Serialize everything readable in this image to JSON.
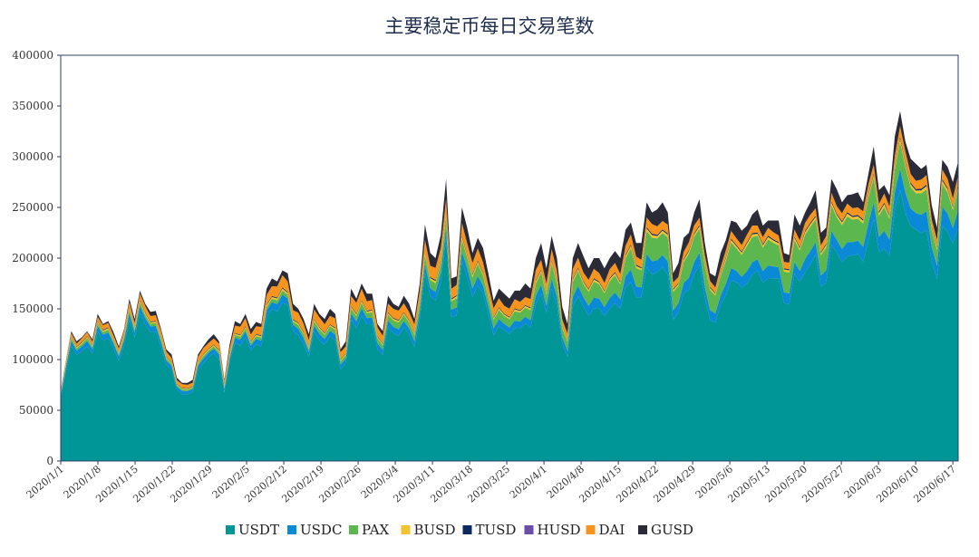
{
  "chart_data": {
    "type": "area",
    "stacked": true,
    "title": "主要稳定币每日交易笔数",
    "xlabel": "",
    "ylabel": "",
    "ylim": [
      0,
      400000
    ],
    "yticks": [
      0,
      50000,
      100000,
      150000,
      200000,
      250000,
      300000,
      350000,
      400000
    ],
    "x_start": "2020/1/1",
    "x_end": "2020/6/18",
    "xtick_labels": [
      "2020/1/1",
      "2020/1/8",
      "2020/1/15",
      "2020/1/22",
      "2020/1/29",
      "2020/2/5",
      "2020/2/12",
      "2020/2/19",
      "2020/2/26",
      "2020/3/4",
      "2020/3/11",
      "2020/3/18",
      "2020/3/25",
      "2020/4/1",
      "2020/4/8",
      "2020/4/15",
      "2020/4/22",
      "2020/4/29",
      "2020/5/6",
      "2020/5/13",
      "2020/5/20",
      "2020/5/27",
      "2020/6/3",
      "2020/6/10",
      "2020/6/17"
    ],
    "grid": false,
    "legend_position": "bottom",
    "totals_estimated": [
      70000,
      100000,
      128000,
      118000,
      122000,
      128000,
      120000,
      145000,
      135000,
      138000,
      127000,
      113000,
      130000,
      160000,
      140000,
      168000,
      155000,
      147000,
      148000,
      130000,
      110000,
      105000,
      82000,
      77000,
      77000,
      80000,
      105000,
      113000,
      120000,
      125000,
      118000,
      80000,
      115000,
      138000,
      135000,
      145000,
      130000,
      137000,
      135000,
      170000,
      180000,
      177000,
      188000,
      185000,
      155000,
      150000,
      140000,
      125000,
      155000,
      145000,
      140000,
      150000,
      145000,
      110000,
      118000,
      170000,
      160000,
      175000,
      165000,
      165000,
      135000,
      128000,
      163000,
      155000,
      152000,
      163000,
      155000,
      140000,
      175000,
      233000,
      205000,
      200000,
      223000,
      278000,
      180000,
      182000,
      250000,
      230000,
      205000,
      220000,
      210000,
      185000,
      158000,
      170000,
      165000,
      160000,
      168000,
      168000,
      175000,
      170000,
      200000,
      215000,
      190000,
      222000,
      200000,
      152000,
      135000,
      200000,
      215000,
      202000,
      190000,
      200000,
      200000,
      190000,
      200000,
      207000,
      200000,
      228000,
      235000,
      215000,
      215000,
      255000,
      245000,
      248000,
      255000,
      245000,
      185000,
      195000,
      220000,
      225000,
      245000,
      258000,
      215000,
      185000,
      182000,
      205000,
      218000,
      237000,
      235000,
      227000,
      232000,
      243000,
      248000,
      232000,
      237000,
      237000,
      237000,
      205000,
      203000,
      243000,
      232000,
      245000,
      255000,
      267000,
      225000,
      230000,
      278000,
      268000,
      255000,
      262000,
      263000,
      265000,
      255000,
      283000,
      310000,
      267000,
      272000,
      262000,
      320000,
      345000,
      315000,
      298000,
      293000,
      288000,
      292000,
      252000,
      230000,
      297000,
      290000,
      275000,
      295000
    ],
    "series": [
      {
        "name": "USDT",
        "color": "#009596",
        "share": [
          0.89,
          0.88,
          0.87,
          0.86,
          0.85,
          0.84,
          0.83,
          0.82,
          0.81,
          0.8,
          0.79,
          0.78,
          0.77,
          0.76,
          0.75,
          0.75,
          0.75,
          0.75,
          0.75,
          0.76,
          0.76,
          0.77,
          0.77,
          0.78,
          0.78
        ]
      },
      {
        "name": "USDC",
        "color": "#0a8ad6",
        "share": [
          0.04,
          0.04,
          0.04,
          0.04,
          0.04,
          0.04,
          0.04,
          0.04,
          0.04,
          0.04,
          0.04,
          0.04,
          0.04,
          0.04,
          0.05,
          0.05,
          0.05,
          0.05,
          0.05,
          0.05,
          0.05,
          0.05,
          0.06,
          0.06,
          0.06
        ]
      },
      {
        "name": "PAX",
        "color": "#5cb84e",
        "share": [
          0.02,
          0.02,
          0.02,
          0.02,
          0.02,
          0.02,
          0.02,
          0.03,
          0.03,
          0.04,
          0.04,
          0.05,
          0.05,
          0.06,
          0.07,
          0.08,
          0.09,
          0.1,
          0.1,
          0.1,
          0.09,
          0.09,
          0.08,
          0.07,
          0.07
        ]
      },
      {
        "name": "BUSD",
        "color": "#f1c232",
        "share": [
          0.01,
          0.01,
          0.01,
          0.01,
          0.01,
          0.01,
          0.01,
          0.01,
          0.01,
          0.01,
          0.01,
          0.01,
          0.01,
          0.01,
          0.01,
          0.01,
          0.01,
          0.01,
          0.01,
          0.01,
          0.01,
          0.01,
          0.01,
          0.01,
          0.01
        ]
      },
      {
        "name": "TUSD",
        "color": "#0d2a5e",
        "share": [
          0.005,
          0.005,
          0.005,
          0.005,
          0.005,
          0.005,
          0.005,
          0.005,
          0.005,
          0.005,
          0.005,
          0.005,
          0.005,
          0.005,
          0.005,
          0.005,
          0.005,
          0.005,
          0.005,
          0.005,
          0.005,
          0.005,
          0.005,
          0.005,
          0.005
        ]
      },
      {
        "name": "HUSD",
        "color": "#6a4ea8",
        "share": [
          0.0,
          0.0,
          0.0,
          0.0,
          0.0,
          0.0,
          0.0,
          0.0,
          0.0,
          0.0,
          0.0,
          0.0,
          0.0,
          0.0,
          0.0,
          0.0,
          0.0,
          0.0,
          0.0,
          0.0,
          0.0,
          0.0,
          0.0,
          0.0,
          0.0
        ]
      },
      {
        "name": "DAI",
        "color": "#f7941d",
        "share": [
          0.025,
          0.03,
          0.035,
          0.045,
          0.05,
          0.055,
          0.06,
          0.06,
          0.06,
          0.055,
          0.055,
          0.05,
          0.05,
          0.045,
          0.045,
          0.04,
          0.035,
          0.03,
          0.03,
          0.03,
          0.03,
          0.03,
          0.03,
          0.03,
          0.03
        ]
      },
      {
        "name": "GUSD",
        "color": "#2b2b38",
        "share": [
          0.01,
          0.015,
          0.02,
          0.025,
          0.025,
          0.03,
          0.035,
          0.035,
          0.035,
          0.035,
          0.06,
          0.055,
          0.06,
          0.07,
          0.065,
          0.065,
          0.06,
          0.055,
          0.055,
          0.045,
          0.055,
          0.045,
          0.045,
          0.045,
          0.045
        ]
      }
    ]
  }
}
